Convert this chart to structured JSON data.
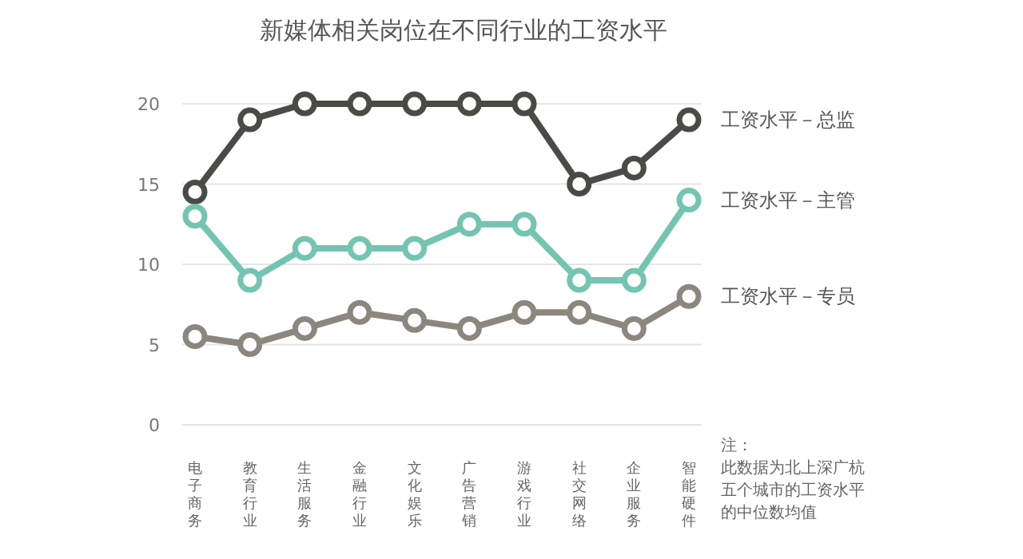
{
  "chart_data": {
    "type": "line",
    "title": "新媒体相关岗位在不同行业的工资水平",
    "categories": [
      "电子商务",
      "教育行业",
      "生活服务",
      "金融行业",
      "文化娱乐",
      "广告营销",
      "游戏行业",
      "社交网络",
      "企业服务",
      "智能硬件"
    ],
    "series": [
      {
        "name": "工资水平－总监",
        "color": "#4a4a46",
        "values": [
          14.5,
          19,
          20,
          20,
          20,
          20,
          20,
          15,
          16,
          19
        ]
      },
      {
        "name": "工资水平－主管",
        "color": "#74c4b2",
        "values": [
          13,
          9,
          11,
          11,
          11,
          12.5,
          12.5,
          9,
          9,
          14
        ]
      },
      {
        "name": "工资水平－专员",
        "color": "#8c877e",
        "values": [
          5.5,
          5,
          6,
          7,
          6.5,
          6,
          7,
          7,
          6,
          8
        ]
      }
    ],
    "ylim": [
      0,
      20
    ],
    "yticks": [
      0,
      5,
      10,
      15,
      20
    ],
    "grid": "y",
    "marker": "circle",
    "line_style": "solid",
    "annotations": [
      "注：",
      "此数据为北上深广杭五个城市的工资水平的中位数均值"
    ]
  }
}
